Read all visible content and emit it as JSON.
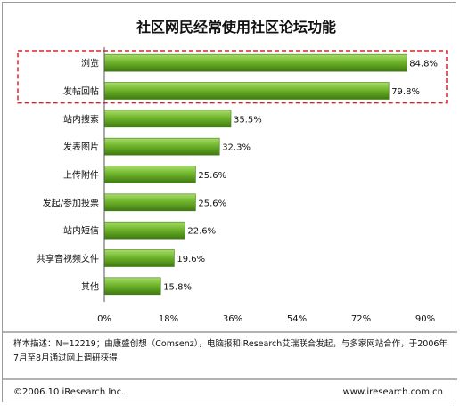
{
  "chart_data": {
    "type": "bar",
    "orientation": "horizontal",
    "title": "社区网民经常使用社区论坛功能",
    "categories": [
      "浏览",
      "发帖回帖",
      "站内搜索",
      "发表图片",
      "上传附件",
      "发起/参加投票",
      "站内短信",
      "共享音视频文件",
      "其他"
    ],
    "values": [
      84.8,
      79.8,
      35.5,
      32.3,
      25.6,
      25.6,
      22.6,
      19.6,
      15.8
    ],
    "value_labels": [
      "84.8%",
      "79.8%",
      "35.5%",
      "32.3%",
      "25.6%",
      "25.6%",
      "22.6%",
      "19.6%",
      "15.8%"
    ],
    "xlim": [
      0,
      90
    ],
    "xticks": [
      "0%",
      "18%",
      "36%",
      "54%",
      "72%",
      "90%"
    ],
    "highlighted_categories": [
      "浏览",
      "发帖回帖"
    ],
    "grid": false,
    "colors": {
      "bar": "#6fb52b",
      "bar_light": "#a8dd6c",
      "bar_dark": "#3f7a12",
      "highlight_box": "#e0202a"
    }
  },
  "note": "样本描述：N=12219；由康盛创想（Comsenz），电脑报和iResearch艾瑞联合发起，与多家网站合作，于2006年7月至8月通过网上调研获得",
  "footer": {
    "copyright": "©2006.10 iResearch Inc.",
    "website": "www.iresearch.com.cn"
  }
}
